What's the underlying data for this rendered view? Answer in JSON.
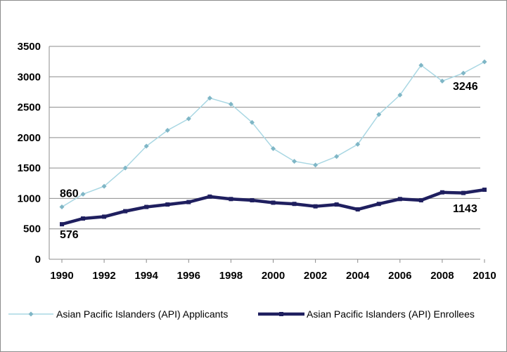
{
  "chart_data": {
    "type": "line",
    "title": "",
    "xlabel": "",
    "ylabel": "",
    "ylim": [
      0,
      3500
    ],
    "y_ticks": [
      0,
      500,
      1000,
      1500,
      2000,
      2500,
      3000,
      3500
    ],
    "x_tick_labels": [
      "1990",
      "1992",
      "1994",
      "1996",
      "1998",
      "2000",
      "2002",
      "2004",
      "2006",
      "2008",
      "2010"
    ],
    "x": [
      1990,
      1991,
      1992,
      1993,
      1994,
      1995,
      1996,
      1997,
      1998,
      1999,
      2000,
      2001,
      2002,
      2003,
      2004,
      2005,
      2006,
      2007,
      2008,
      2009,
      2010
    ],
    "legend_position": "bottom",
    "grid": "horizontal",
    "series": [
      {
        "name": "Asian Pacific Islanders (API) Applicants",
        "color": "#a9d7e3",
        "marker": "diamond",
        "values": [
          860,
          1070,
          1200,
          1500,
          1860,
          2120,
          2310,
          2650,
          2550,
          2250,
          1820,
          1610,
          1550,
          1690,
          1890,
          2380,
          2700,
          3190,
          2930,
          3060,
          3246
        ]
      },
      {
        "name": "Asian Pacific Islanders (API) Enrollees",
        "color": "#1f1f5f",
        "marker": "square",
        "values": [
          576,
          670,
          700,
          790,
          860,
          900,
          940,
          1030,
          990,
          970,
          930,
          910,
          870,
          900,
          820,
          910,
          990,
          970,
          1100,
          1090,
          1143
        ]
      }
    ],
    "annotations": [
      {
        "text": "860",
        "series": 0,
        "x": 1990
      },
      {
        "text": "3246",
        "series": 0,
        "x": 2010
      },
      {
        "text": "576",
        "series": 1,
        "x": 1990
      },
      {
        "text": "1143",
        "series": 1,
        "x": 2010
      }
    ]
  }
}
